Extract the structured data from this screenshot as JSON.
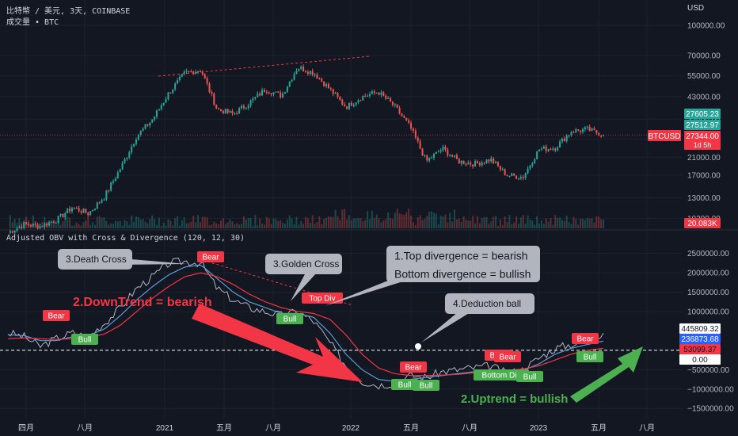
{
  "header": {
    "symbol_line": "比特幣 / 美元, 3天, COINBASE",
    "volume_line": "成交量 • BTC",
    "currency": "USD"
  },
  "indicator": {
    "title": "Adjusted OBV with Cross & Divergence (120, 12, 30)"
  },
  "price_axis": {
    "ticks": [
      {
        "value": 100000,
        "label": "100000.00"
      },
      {
        "value": 70000,
        "label": "70000.00"
      },
      {
        "value": 55000,
        "label": "55000.00"
      },
      {
        "value": 43000,
        "label": "43000.00"
      },
      {
        "value": 33000,
        "label": "33000.00"
      },
      {
        "value": 26000,
        "label": "26000.00"
      },
      {
        "value": 21000,
        "label": "21000.00"
      },
      {
        "value": 17000,
        "label": "17000.00"
      },
      {
        "value": 13000,
        "label": "13000.00"
      },
      {
        "value": 10200,
        "label": "10200.00"
      }
    ],
    "price_badges": [
      {
        "label": "27605.23",
        "color": "#26a69a"
      },
      {
        "label": "27512.97",
        "color": "#26a69a"
      },
      {
        "label": "27344.00",
        "sub": "1d 5h",
        "color": "#f23645"
      }
    ],
    "symbol_badge": {
      "label": "BTCUSD",
      "color": "#f23645"
    },
    "volume_badge": {
      "label": "20.083K",
      "color": "#f23645"
    }
  },
  "obv_axis": {
    "ticks": [
      {
        "value": 2500000,
        "label": "2500000.00"
      },
      {
        "value": 2000000,
        "label": "2000000.00"
      },
      {
        "value": 1500000,
        "label": "1500000.00"
      },
      {
        "value": 1000000,
        "label": "1000000.00"
      },
      {
        "value": -500000,
        "label": "−500000.00"
      },
      {
        "value": -1000000,
        "label": "−1000000.00"
      },
      {
        "value": -1500000,
        "label": "−1500000.00"
      }
    ],
    "badges": [
      {
        "label": "445809.32",
        "bg": "#ffffff",
        "fg": "#131722"
      },
      {
        "label": "236873.68",
        "bg": "#2962ff",
        "fg": "#ffffff"
      },
      {
        "label": "53099.37",
        "bg": "#f23645",
        "fg": "#131722"
      },
      {
        "label": "0.00",
        "bg": "#ffffff",
        "fg": "#131722"
      }
    ]
  },
  "time_axis": {
    "labels": [
      "四月",
      "八月",
      "2021",
      "五月",
      "八月",
      "2022",
      "五月",
      "八月",
      "2023",
      "五月",
      "八月"
    ]
  },
  "signals": [
    {
      "text": "Bear",
      "type": "bear"
    },
    {
      "text": "Bull",
      "type": "bull"
    },
    {
      "text": "Bear",
      "type": "bear"
    },
    {
      "text": "Bull",
      "type": "bull"
    },
    {
      "text": "Top Div",
      "type": "bear"
    },
    {
      "text": "Bear",
      "type": "bear"
    },
    {
      "text": "Bull",
      "type": "bull"
    },
    {
      "text": "Bull",
      "type": "bull"
    },
    {
      "text": "Bear",
      "type": "bear"
    },
    {
      "text": "Bear",
      "type": "bear"
    },
    {
      "text": "Bottom Div",
      "type": "bull"
    },
    {
      "text": "Bull",
      "type": "bull"
    },
    {
      "text": "Bear",
      "type": "bear"
    },
    {
      "text": "Bull",
      "type": "bull"
    }
  ],
  "callouts": {
    "death_cross": "3.Death Cross",
    "golden_cross": "3.Golden Cross",
    "divergence_line1": "1.Top divergence = bearish",
    "divergence_line2": "Bottom divergence = bullish",
    "deduction_ball": "4.Deduction ball",
    "downtrend": "2.DownTrend = bearish",
    "uptrend": "2.Uptrend = bullish"
  },
  "colors": {
    "background": "#131722",
    "up": "#26a69a",
    "down": "#ef5350",
    "bear_label": "#f23645",
    "bull_label": "#4caf50",
    "obv_line": "#b2b5be",
    "fast_ma": "#5b9bd5",
    "slow_ma": "#f23645",
    "downtrend_arrow": "#f23645",
    "uptrend_arrow": "#4caf50",
    "callout_bg": "#b2b5be"
  },
  "chart_data": [
    {
      "type": "candlestick",
      "title": "比特幣 / 美元, 3天, COINBASE",
      "x": [
        "2020-04",
        "2020-05",
        "2020-06",
        "2020-07",
        "2020-08",
        "2020-09",
        "2020-10",
        "2020-11",
        "2020-12",
        "2021-01",
        "2021-02",
        "2021-03",
        "2021-04",
        "2021-05",
        "2021-06",
        "2021-07",
        "2021-08",
        "2021-09",
        "2021-10",
        "2021-11",
        "2021-12",
        "2022-01",
        "2022-02",
        "2022-03",
        "2022-04",
        "2022-05",
        "2022-06",
        "2022-07",
        "2022-08",
        "2022-09",
        "2022-10",
        "2022-11",
        "2022-12",
        "2023-01",
        "2023-02",
        "2023-03",
        "2023-04",
        "2023-05"
      ],
      "y": [
        8600,
        9500,
        9300,
        10000,
        11600,
        10800,
        13200,
        18500,
        27000,
        33000,
        45000,
        57000,
        59000,
        37000,
        35000,
        40000,
        47000,
        43500,
        61000,
        57000,
        47000,
        38000,
        43000,
        45500,
        38500,
        30000,
        20000,
        23300,
        20000,
        19400,
        20500,
        17000,
        16600,
        23100,
        23500,
        28500,
        29200,
        27344
      ],
      "scale": "log",
      "ylim": [
        9500,
        100000
      ],
      "currency": "USD"
    },
    {
      "type": "line",
      "title": "Adjusted OBV with Cross & Divergence (120, 12, 30)",
      "x": [
        "2020-04",
        "2020-05",
        "2020-06",
        "2020-07",
        "2020-08",
        "2020-09",
        "2020-10",
        "2020-11",
        "2020-12",
        "2021-01",
        "2021-02",
        "2021-03",
        "2021-04",
        "2021-05",
        "2021-06",
        "2021-07",
        "2021-08",
        "2021-09",
        "2021-10",
        "2021-11",
        "2021-12",
        "2022-01",
        "2022-02",
        "2022-03",
        "2022-04",
        "2022-05",
        "2022-06",
        "2022-07",
        "2022-08",
        "2022-09",
        "2022-10",
        "2022-11",
        "2022-12",
        "2023-01",
        "2023-02",
        "2023-03",
        "2023-04",
        "2023-05"
      ],
      "series": [
        {
          "name": "",
          "color": "#b2b5be",
          "values": [
            450000,
            350000,
            100000,
            300000,
            450000,
            350000,
            700000,
            1100000,
            1600000,
            1900000,
            2250000,
            2300000,
            2250000,
            1600000,
            1300000,
            1100000,
            1000000,
            900000,
            1000000,
            750000,
            200000,
            -400000,
            -800000,
            -900000,
            -850000,
            -650000,
            -700000,
            -550000,
            -500000,
            -450000,
            -400000,
            -600000,
            -500000,
            -200000,
            50000,
            150000,
            250000,
            445809
          ]
        },
        {
          "name": "",
          "color": "#5b9bd5",
          "values": [
            400000,
            380000,
            250000,
            250000,
            350000,
            380000,
            550000,
            900000,
            1300000,
            1650000,
            1950000,
            2150000,
            2200000,
            1850000,
            1500000,
            1250000,
            1100000,
            950000,
            950000,
            850000,
            450000,
            -100000,
            -500000,
            -750000,
            -800000,
            -750000,
            -700000,
            -650000,
            -600000,
            -550000,
            -500000,
            -550000,
            -520000,
            -350000,
            -100000,
            50000,
            150000,
            236874
          ]
        },
        {
          "name": "",
          "color": "#f23645",
          "values": [
            300000,
            320000,
            300000,
            280000,
            300000,
            330000,
            420000,
            650000,
            1000000,
            1350000,
            1650000,
            1900000,
            2000000,
            1900000,
            1700000,
            1450000,
            1250000,
            1100000,
            1000000,
            950000,
            800000,
            400000,
            -100000,
            -450000,
            -600000,
            -650000,
            -650000,
            -640000,
            -620000,
            -580000,
            -540000,
            -520000,
            -480000,
            -400000,
            -250000,
            -100000,
            0,
            53099
          ]
        }
      ],
      "ylim": [
        -1700000,
        2800000
      ],
      "reference_line": 0
    }
  ]
}
